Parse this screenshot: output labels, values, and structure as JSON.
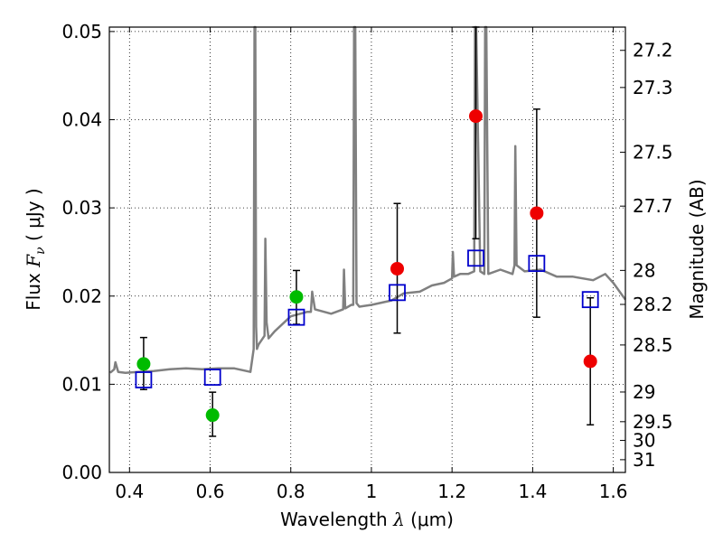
{
  "chart_data": {
    "type": "scatter",
    "xlabel": {
      "prefix": "Wavelength  ",
      "sym": "λ",
      "units": " (μm)"
    },
    "ylabel": {
      "prefix": "Flux  ",
      "sym": "F",
      "sub": "ν",
      "units": "  ( μJy )"
    },
    "y2label": "Magnitude (AB)",
    "xlim": [
      0.35,
      1.63
    ],
    "ylim": [
      0.0,
      0.0505
    ],
    "grid": true,
    "x_ticks": [
      0.4,
      0.6,
      0.8,
      1.0,
      1.2,
      1.4,
      1.6
    ],
    "x_tick_labels": [
      "0.4",
      "0.6",
      "0.8",
      "1",
      "1.2",
      "1.4",
      "1.6"
    ],
    "y_ticks": [
      0.0,
      0.01,
      0.02,
      0.03,
      0.04,
      0.05
    ],
    "y_tick_labels": [
      "0.00",
      "0.01",
      "0.02",
      "0.03",
      "0.04",
      "0.05"
    ],
    "magnitude_ticks": [
      "27.2",
      "27.3",
      "27.5",
      "27.7",
      "28",
      "28.2",
      "28.5",
      "29",
      "29.5",
      "30",
      "31"
    ],
    "colors": {
      "green": "#00bb00",
      "red": "#ee0000",
      "blue": "#0000cc",
      "spectrum": "#808080"
    },
    "series": [
      {
        "marker": "circle",
        "color": "green",
        "points": [
          {
            "x": 0.435,
            "y": 0.0123,
            "ylo": 0.0094,
            "yhi": 0.0153
          },
          {
            "x": 0.606,
            "y": 0.0065,
            "ylo": 0.0041,
            "yhi": 0.0091
          },
          {
            "x": 0.814,
            "y": 0.0199,
            "ylo": 0.0168,
            "yhi": 0.0229
          }
        ]
      },
      {
        "marker": "circle",
        "color": "red",
        "points": [
          {
            "x": 1.064,
            "y": 0.0231,
            "ylo": 0.0158,
            "yhi": 0.0305
          },
          {
            "x": 1.259,
            "y": 0.0404,
            "ylo": 0.0265,
            "yhi": 0.0505
          },
          {
            "x": 1.41,
            "y": 0.0294,
            "ylo": 0.0176,
            "yhi": 0.0412
          },
          {
            "x": 1.543,
            "y": 0.0126,
            "ylo": 0.0054,
            "yhi": 0.0198
          }
        ]
      },
      {
        "marker": "square",
        "color": "blue",
        "points": [
          {
            "x": 0.435,
            "y": 0.0105
          },
          {
            "x": 0.606,
            "y": 0.0108
          },
          {
            "x": 0.814,
            "y": 0.0176
          },
          {
            "x": 1.064,
            "y": 0.0204
          },
          {
            "x": 1.259,
            "y": 0.0243
          },
          {
            "x": 1.41,
            "y": 0.0237
          },
          {
            "x": 1.543,
            "y": 0.0196
          }
        ]
      },
      {
        "type": "line",
        "color": "spectrum",
        "x": [
          0.352,
          0.362,
          0.365,
          0.372,
          0.39,
          0.42,
          0.46,
          0.5,
          0.54,
          0.58,
          0.62,
          0.66,
          0.7,
          0.708,
          0.71,
          0.712,
          0.714,
          0.716,
          0.72,
          0.735,
          0.737,
          0.74,
          0.745,
          0.76,
          0.8,
          0.84,
          0.85,
          0.853,
          0.86,
          0.9,
          0.93,
          0.932,
          0.935,
          0.95,
          0.955,
          0.957,
          0.96,
          0.963,
          0.97,
          1.0,
          1.05,
          1.08,
          1.12,
          1.15,
          1.18,
          1.2,
          1.202,
          1.205,
          1.22,
          1.24,
          1.255,
          1.257,
          1.26,
          1.27,
          1.28,
          1.282,
          1.285,
          1.29,
          1.32,
          1.35,
          1.355,
          1.357,
          1.36,
          1.38,
          1.42,
          1.46,
          1.5,
          1.55,
          1.58,
          1.6,
          1.63
        ],
        "y": [
          0.0113,
          0.0117,
          0.0125,
          0.0114,
          0.0113,
          0.0114,
          0.0115,
          0.0117,
          0.0118,
          0.0117,
          0.0118,
          0.0118,
          0.0114,
          0.014,
          0.0505,
          0.0505,
          0.0165,
          0.014,
          0.0145,
          0.0155,
          0.0265,
          0.017,
          0.0152,
          0.016,
          0.0177,
          0.0182,
          0.0182,
          0.0205,
          0.0185,
          0.018,
          0.0185,
          0.023,
          0.0186,
          0.019,
          0.019,
          0.0505,
          0.0505,
          0.0192,
          0.0188,
          0.019,
          0.0195,
          0.0203,
          0.0205,
          0.0212,
          0.0215,
          0.022,
          0.025,
          0.0222,
          0.0225,
          0.0225,
          0.0228,
          0.0505,
          0.0505,
          0.0228,
          0.0225,
          0.0505,
          0.0505,
          0.0225,
          0.023,
          0.0225,
          0.0235,
          0.037,
          0.0235,
          0.0228,
          0.023,
          0.0222,
          0.0222,
          0.0218,
          0.0225,
          0.0215,
          0.0196
        ]
      }
    ]
  }
}
